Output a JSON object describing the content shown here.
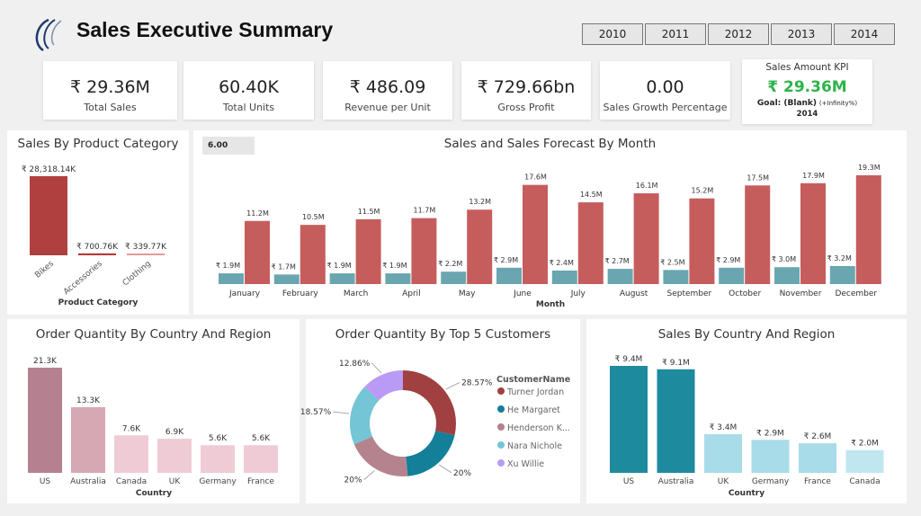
{
  "header": {
    "title": "Sales Executive Summary",
    "years": [
      "2010",
      "2011",
      "2012",
      "2013",
      "2014"
    ]
  },
  "kpis": [
    {
      "value": "₹ 29.36M",
      "label": "Total Sales"
    },
    {
      "value": "60.40K",
      "label": "Total Units"
    },
    {
      "value": "₹ 486.09",
      "label": "Revenue per Unit"
    },
    {
      "value": "₹ 729.66bn",
      "label": "Gross Profit"
    },
    {
      "value": "0.00",
      "label": "Sales Growth Percentage"
    }
  ],
  "kpi_card": {
    "title": "Sales Amount KPI",
    "value": "₹ 29.36M",
    "goal_label": "Goal: (Blank)",
    "goal_delta": "(+Infinity%)",
    "year": "2014",
    "color": "#2db34a"
  },
  "forecast_box": "6.00",
  "chart_data": [
    {
      "type": "bar",
      "title": "Sales By Product Category",
      "xlabel": "Product Category",
      "categories": [
        "Bikes",
        "Accessories",
        "Clothing"
      ],
      "values": [
        28318.14,
        700.76,
        339.77
      ],
      "labels": [
        "₹ 28,318.14K",
        "₹ 700.76K",
        "₹ 339.77K"
      ],
      "colors": [
        "#b04040",
        "#b53a3a",
        "#e39a9a"
      ],
      "grid": false
    },
    {
      "type": "bar",
      "title": "Sales and Sales Forecast By Month",
      "xlabel": "Month",
      "categories": [
        "January",
        "February",
        "March",
        "April",
        "May",
        "June",
        "July",
        "August",
        "September",
        "October",
        "November",
        "December"
      ],
      "series": [
        {
          "values": [
            1.9,
            1.7,
            1.9,
            1.9,
            2.2,
            2.9,
            2.4,
            2.7,
            2.5,
            2.9,
            3.0,
            3.2
          ],
          "labels": [
            "₹ 1.9M",
            "₹ 1.7M",
            "₹ 1.9M",
            "₹ 1.9M",
            "₹ 2.2M",
            "₹ 2.9M",
            "₹ 2.4M",
            "₹ 2.7M",
            "₹ 2.5M",
            "₹ 2.9M",
            "₹ 3.0M",
            "₹ 3.2M"
          ],
          "color": "#6aa6b0"
        },
        {
          "values": [
            11.2,
            10.5,
            11.5,
            11.7,
            13.2,
            17.6,
            14.5,
            16.1,
            15.2,
            17.5,
            17.9,
            19.3
          ],
          "labels": [
            "11.2M",
            "10.5M",
            "11.5M",
            "11.7M",
            "13.2M",
            "17.6M",
            "14.5M",
            "16.1M",
            "15.2M",
            "17.5M",
            "17.9M",
            "19.3M"
          ],
          "color": "#c65d5d"
        }
      ],
      "grid": false
    },
    {
      "type": "bar",
      "title": "Order Quantity By Country And Region",
      "xlabel": "Country",
      "categories": [
        "US",
        "Australia",
        "Canada",
        "UK",
        "Germany",
        "France"
      ],
      "values": [
        21.3,
        13.3,
        7.6,
        6.9,
        5.6,
        5.6
      ],
      "labels": [
        "21.3K",
        "13.3K",
        "7.6K",
        "6.9K",
        "5.6K",
        "5.6K"
      ],
      "colors": [
        "#b5808f",
        "#d6a8b3",
        "#efccd5",
        "#efccd5",
        "#efccd5",
        "#efccd5"
      ],
      "grid": false
    },
    {
      "type": "pie",
      "title": "Order Quantity By Top 5 Customers",
      "legend_title": "CustomerName",
      "legend": "right",
      "categories": [
        "Turner Jordan",
        "He Margaret",
        "Henderson K...",
        "Nara Nichole",
        "Xu Willie"
      ],
      "values": [
        28.57,
        20,
        20,
        18.57,
        12.86
      ],
      "labels": [
        "28.57%",
        "20%",
        "20%",
        "18.57%",
        "12.86%"
      ],
      "colors": [
        "#a04040",
        "#137f99",
        "#b5838d",
        "#74c5d5",
        "#b99af5"
      ]
    },
    {
      "type": "bar",
      "title": "Sales By Country And Region",
      "xlabel": "Country",
      "categories": [
        "US",
        "Australia",
        "UK",
        "Germany",
        "France",
        "Canada"
      ],
      "values": [
        9.4,
        9.1,
        3.4,
        2.9,
        2.6,
        2.0
      ],
      "labels": [
        "₹ 9.4M",
        "₹ 9.1M",
        "₹ 3.4M",
        "₹ 2.9M",
        "₹ 2.6M",
        "₹ 2.0M"
      ],
      "colors": [
        "#1e8a9e",
        "#1e8a9e",
        "#a8dce8",
        "#a8dce8",
        "#a8dce8",
        "#c0e7f0"
      ],
      "grid": false
    }
  ]
}
